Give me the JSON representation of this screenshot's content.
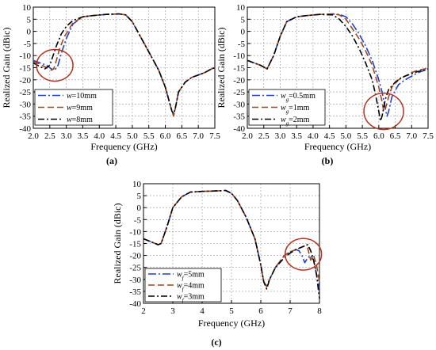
{
  "chart_data": [
    {
      "panel": "(a)",
      "type": "line",
      "xlabel": "Frequency (GHz)",
      "ylabel": "Realized Gain (dBic)",
      "xlim": [
        2.0,
        7.5
      ],
      "ylim": [
        -40,
        10
      ],
      "xticks": [
        "2.0",
        "2.5",
        "3.0",
        "3.5",
        "4.0",
        "4.5",
        "5.0",
        "5.5",
        "6.0",
        "6.5",
        "7.0",
        "7.5"
      ],
      "yticks": [
        "10",
        "5",
        "0",
        "-5",
        "-10",
        "-15",
        "-20",
        "-25",
        "-30",
        "-35",
        "-40"
      ],
      "legend_position": "bottom-left",
      "highlight": {
        "x": 2.65,
        "y": -14
      },
      "series": [
        {
          "name": "w=10mm",
          "legend_var": "w",
          "legend_val": "=10mm",
          "color": "#1f3fcf",
          "dash": "10,3,2,3",
          "x": [
            2.0,
            2.2,
            2.4,
            2.55,
            2.65,
            2.75,
            2.85,
            3.0,
            3.2,
            3.5,
            3.8,
            4.2,
            4.6,
            4.8,
            5.0,
            5.2,
            5.4,
            5.6,
            5.8,
            6.0,
            6.1,
            6.2,
            6.25,
            6.3,
            6.4,
            6.6,
            6.8,
            7.0,
            7.2,
            7.4,
            7.5
          ],
          "y": [
            -12,
            -13,
            -14,
            -15.5,
            -16,
            -14,
            -9,
            -3,
            3,
            6,
            6.5,
            7,
            7.2,
            6.8,
            4,
            -1,
            -6,
            -11,
            -16,
            -23,
            -28,
            -33,
            -34,
            -32,
            -25,
            -21,
            -19,
            -18,
            -17,
            -15.5,
            -15
          ]
        },
        {
          "name": "w=9mm",
          "legend_var": "w",
          "legend_val": "=9mm",
          "color": "#a0471a",
          "dash": "8,4",
          "x": [
            2.0,
            2.2,
            2.4,
            2.55,
            2.62,
            2.7,
            2.8,
            2.95,
            3.2,
            3.5,
            3.8,
            4.2,
            4.6,
            4.8,
            5.0,
            5.2,
            5.4,
            5.6,
            5.8,
            6.0,
            6.1,
            6.2,
            6.25,
            6.3,
            6.4,
            6.6,
            6.8,
            7.0,
            7.2,
            7.4,
            7.5
          ],
          "y": [
            -12.5,
            -13.5,
            -15,
            -16,
            -15.5,
            -12,
            -7,
            -2,
            3.5,
            6,
            6.5,
            7,
            7.2,
            6.8,
            4,
            -1,
            -6,
            -11,
            -16,
            -23,
            -28,
            -33,
            -35,
            -32,
            -25,
            -21,
            -19,
            -18,
            -17,
            -15.5,
            -15
          ]
        },
        {
          "name": "w=8mm",
          "legend_var": "w",
          "legend_val": "=8mm",
          "color": "#000000",
          "dash": "8,3,2,3",
          "x": [
            2.0,
            2.2,
            2.35,
            2.5,
            2.6,
            2.7,
            2.85,
            3.0,
            3.2,
            3.5,
            3.8,
            4.2,
            4.6,
            4.8,
            5.0,
            5.2,
            5.4,
            5.6,
            5.8,
            6.0,
            6.1,
            6.2,
            6.25,
            6.3,
            6.4,
            6.6,
            6.8,
            7.0,
            7.2,
            7.4,
            7.5
          ],
          "y": [
            -13,
            -14.5,
            -15.5,
            -14,
            -10,
            -6,
            -1,
            2,
            4.5,
            6,
            6.5,
            7,
            7.2,
            6.8,
            4,
            -1,
            -6,
            -11,
            -16,
            -23,
            -28,
            -33,
            -34,
            -32,
            -25,
            -21,
            -19,
            -18,
            -17,
            -15.5,
            -15
          ]
        }
      ]
    },
    {
      "panel": "(b)",
      "type": "line",
      "xlabel": "Frequency (GHz)",
      "ylabel": "Realized Gain (dBic)",
      "xlim": [
        2.0,
        7.5
      ],
      "ylim": [
        -40,
        10
      ],
      "xticks": [
        "2.0",
        "2.5",
        "3.0",
        "3.5",
        "4.0",
        "4.5",
        "5.0",
        "5.5",
        "6.0",
        "6.5",
        "7.0",
        "7.5"
      ],
      "yticks": [
        "10",
        "5",
        "0",
        "-5",
        "-10",
        "-15",
        "-20",
        "-25",
        "-30",
        "-35",
        "-40"
      ],
      "legend_position": "bottom-left",
      "highlight": {
        "x": 6.15,
        "y": -33
      },
      "series": [
        {
          "name": "wg=0.5mm",
          "legend_var": "w",
          "legend_sub": "g",
          "legend_val": "=0.5mm",
          "color": "#1f3fcf",
          "dash": "10,3,2,3",
          "x": [
            2.0,
            2.2,
            2.4,
            2.6,
            2.8,
            3.0,
            3.2,
            3.5,
            3.8,
            4.2,
            4.6,
            4.8,
            5.0,
            5.2,
            5.4,
            5.6,
            5.8,
            6.0,
            6.1,
            6.2,
            6.25,
            6.3,
            6.4,
            6.6,
            6.8,
            7.0,
            7.2,
            7.4,
            7.5
          ],
          "y": [
            -12,
            -13,
            -14,
            -15.5,
            -10,
            -2,
            4,
            6,
            6.5,
            7,
            7.2,
            7,
            6,
            3,
            -1,
            -6,
            -12,
            -20,
            -25,
            -32,
            -35,
            -33,
            -27,
            -22,
            -20,
            -18.5,
            -17,
            -16,
            -15.5
          ]
        },
        {
          "name": "wg=1mm",
          "legend_var": "w",
          "legend_sub": "g",
          "legend_val": "=1mm",
          "color": "#a0471a",
          "dash": "8,4",
          "x": [
            2.0,
            2.2,
            2.4,
            2.6,
            2.8,
            3.0,
            3.2,
            3.5,
            3.8,
            4.2,
            4.6,
            4.8,
            5.0,
            5.2,
            5.4,
            5.6,
            5.8,
            6.0,
            6.1,
            6.15,
            6.2,
            6.3,
            6.4,
            6.6,
            6.8,
            7.0,
            7.2,
            7.4,
            7.5
          ],
          "y": [
            -12,
            -13,
            -14,
            -15.5,
            -10,
            -2,
            4,
            6,
            6.5,
            7,
            7.2,
            6.8,
            5,
            1,
            -3,
            -8,
            -14,
            -23,
            -29,
            -33,
            -32,
            -27,
            -23,
            -20,
            -18.5,
            -17,
            -16,
            -15.5,
            -15
          ]
        },
        {
          "name": "wg=2mm",
          "legend_var": "w",
          "legend_sub": "g",
          "legend_val": "=2mm",
          "color": "#000000",
          "dash": "8,3,2,3",
          "x": [
            2.0,
            2.2,
            2.4,
            2.6,
            2.8,
            3.0,
            3.2,
            3.5,
            3.8,
            4.2,
            4.6,
            4.8,
            5.0,
            5.2,
            5.4,
            5.6,
            5.8,
            5.9,
            6.0,
            6.05,
            6.1,
            6.2,
            6.3,
            6.5,
            6.7,
            7.0,
            7.2,
            7.4,
            7.5
          ],
          "y": [
            -12,
            -13,
            -14,
            -15.5,
            -10,
            -2,
            4,
            6,
            6.5,
            7,
            6.8,
            5,
            2,
            -2,
            -7,
            -13,
            -20,
            -26,
            -33,
            -37,
            -35,
            -28,
            -24,
            -21,
            -19,
            -17.5,
            -16.5,
            -16,
            -15.5
          ]
        }
      ]
    },
    {
      "panel": "(c)",
      "type": "line",
      "xlabel": "Frequency (GHz)",
      "ylabel": "Realized Gain (dBic)",
      "xlim": [
        2,
        8
      ],
      "ylim": [
        -40,
        10
      ],
      "xticks": [
        "2",
        "3",
        "4",
        "5",
        "6",
        "7",
        "8"
      ],
      "yticks": [
        "10",
        "5",
        "0",
        "-5",
        "-10",
        "-15",
        "-20",
        "-25",
        "-30",
        "-35",
        "-40"
      ],
      "legend_position": "bottom-left",
      "highlight": {
        "x": 7.45,
        "y": -19.5
      },
      "series": [
        {
          "name": "wf=5mm",
          "legend_var": "w",
          "legend_sub": "f",
          "legend_val": "=5mm",
          "color": "#1f3fcf",
          "dash": "10,3,2,3",
          "x": [
            2.0,
            2.3,
            2.5,
            2.6,
            2.8,
            3.0,
            3.3,
            3.6,
            4.0,
            4.5,
            4.8,
            5.0,
            5.2,
            5.5,
            5.8,
            6.0,
            6.1,
            6.2,
            6.3,
            6.5,
            6.8,
            7.0,
            7.2,
            7.3,
            7.4,
            7.5,
            7.6,
            7.7,
            7.8,
            7.9,
            8.0
          ],
          "y": [
            -13,
            -14.5,
            -15.5,
            -15,
            -8,
            0,
            4.5,
            6.5,
            6.8,
            7,
            7.2,
            6,
            3,
            -4,
            -13,
            -24,
            -31,
            -33,
            -30,
            -25,
            -20,
            -18.5,
            -17.5,
            -18,
            -20,
            -23,
            -21,
            -20,
            -22,
            -28,
            -34
          ]
        },
        {
          "name": "wf=4mm",
          "legend_var": "w",
          "legend_sub": "f",
          "legend_val": "=4mm",
          "color": "#a0471a",
          "dash": "8,4",
          "x": [
            2.0,
            2.3,
            2.5,
            2.6,
            2.8,
            3.0,
            3.3,
            3.6,
            4.0,
            4.5,
            4.8,
            5.0,
            5.2,
            5.5,
            5.8,
            6.0,
            6.1,
            6.2,
            6.3,
            6.5,
            6.8,
            7.0,
            7.2,
            7.4,
            7.5,
            7.6,
            7.7,
            7.8,
            7.9,
            8.0
          ],
          "y": [
            -13,
            -14.5,
            -15.5,
            -15,
            -8,
            0,
            4.5,
            6.5,
            6.8,
            7,
            7.2,
            6,
            3,
            -4,
            -13,
            -24,
            -31,
            -33,
            -30,
            -25,
            -20,
            -18.5,
            -17.5,
            -16.5,
            -16,
            -17,
            -22,
            -20,
            -24,
            -31
          ]
        },
        {
          "name": "wf=3mm",
          "legend_var": "w",
          "legend_sub": "f",
          "legend_val": "=3mm",
          "color": "#000000",
          "dash": "8,3,2,3",
          "x": [
            2.0,
            2.3,
            2.5,
            2.6,
            2.8,
            3.0,
            3.3,
            3.6,
            4.0,
            4.5,
            4.8,
            5.0,
            5.2,
            5.5,
            5.8,
            6.0,
            6.1,
            6.2,
            6.3,
            6.5,
            6.8,
            7.0,
            7.2,
            7.4,
            7.5,
            7.6,
            7.7,
            7.8,
            7.9,
            8.0
          ],
          "y": [
            -13,
            -14.5,
            -15.5,
            -15,
            -8,
            0,
            4.5,
            6.5,
            6.8,
            7,
            7.2,
            6,
            3,
            -4,
            -13,
            -24,
            -31,
            -34,
            -30,
            -25,
            -21,
            -19,
            -17.5,
            -16.5,
            -16,
            -15.5,
            -18,
            -22,
            -28,
            -38
          ]
        }
      ]
    }
  ]
}
